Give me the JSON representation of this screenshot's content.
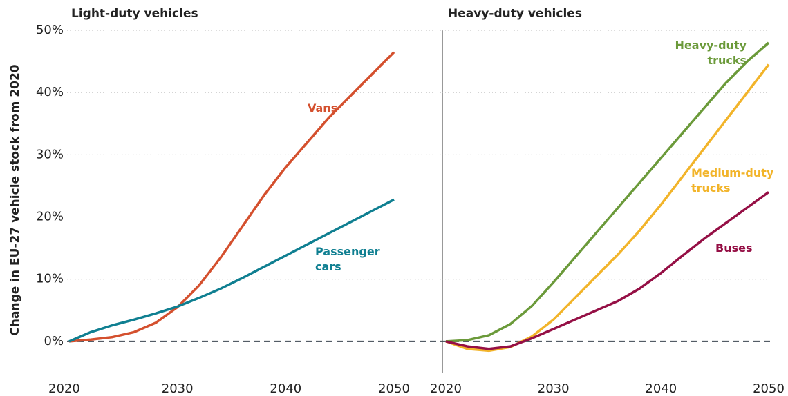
{
  "chart_data": [
    {
      "type": "line",
      "title": "Light-duty vehicles",
      "ylabel": "Change in EU-27 vehicle stock from 2020",
      "x": [
        2020,
        2022,
        2024,
        2026,
        2028,
        2030,
        2032,
        2034,
        2036,
        2038,
        2040,
        2042,
        2044,
        2046,
        2048,
        2050
      ],
      "xlim": [
        2020,
        2050
      ],
      "xticks": [
        2020,
        2030,
        2040,
        2050
      ],
      "ylim": [
        -5,
        50
      ],
      "yticks": [
        {
          "value": 0,
          "label": "0%"
        },
        {
          "value": 10,
          "label": "10%"
        },
        {
          "value": 20,
          "label": "20%"
        },
        {
          "value": 30,
          "label": "30%"
        },
        {
          "value": 40,
          "label": "40%"
        },
        {
          "value": 50,
          "label": "50%"
        }
      ],
      "grid": true,
      "series": [
        {
          "name": "Vans",
          "color": "#d4502e",
          "values": [
            0,
            0.3,
            0.7,
            1.5,
            3,
            5.5,
            9,
            13.5,
            18.5,
            23.5,
            28,
            32,
            36,
            39.5,
            43,
            46.5
          ]
        },
        {
          "name": "Passenger cars",
          "color": "#0f7f91",
          "values": [
            0,
            1.5,
            2.6,
            3.5,
            4.5,
            5.6,
            7,
            8.5,
            10.2,
            12,
            13.8,
            15.6,
            17.4,
            19.2,
            21,
            22.8
          ]
        }
      ]
    },
    {
      "type": "line",
      "title": "Heavy-duty vehicles",
      "x": [
        2020,
        2022,
        2024,
        2026,
        2028,
        2030,
        2032,
        2034,
        2036,
        2038,
        2040,
        2042,
        2044,
        2046,
        2048,
        2050
      ],
      "xlim": [
        2020,
        2050
      ],
      "xticks": [
        2020,
        2030,
        2040,
        2050
      ],
      "ylim": [
        -5,
        50
      ],
      "grid": true,
      "series": [
        {
          "name": "Heavy-duty trucks",
          "color": "#6b9a3a",
          "values": [
            0,
            0.2,
            1,
            2.8,
            5.7,
            9.5,
            13.5,
            17.5,
            21.5,
            25.5,
            29.5,
            33.5,
            37.5,
            41.5,
            45,
            48
          ]
        },
        {
          "name": "Medium-duty trucks",
          "color": "#f2b42a",
          "values": [
            0,
            -1.2,
            -1.5,
            -0.9,
            0.8,
            3.5,
            7,
            10.5,
            14,
            17.8,
            22,
            26.5,
            31,
            35.5,
            40,
            44.5
          ]
        },
        {
          "name": "Buses",
          "color": "#950f45",
          "values": [
            0,
            -0.8,
            -1.2,
            -0.8,
            0.5,
            2,
            3.5,
            5,
            6.5,
            8.5,
            11,
            13.8,
            16.5,
            19,
            21.5,
            24
          ]
        }
      ]
    }
  ]
}
